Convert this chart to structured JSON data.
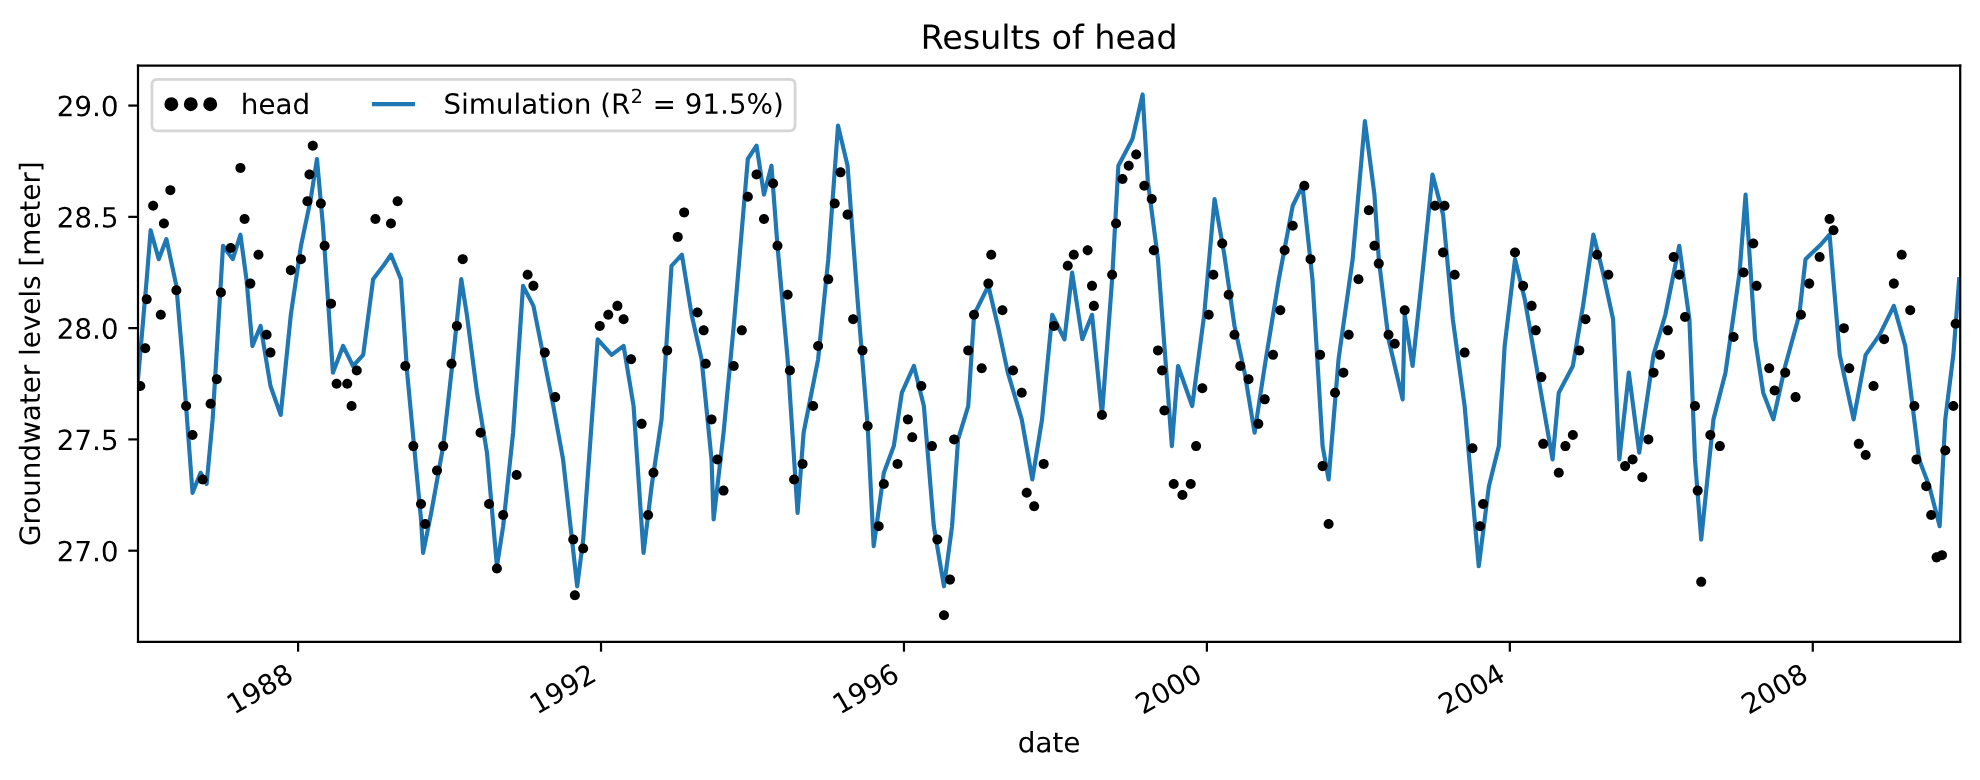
{
  "chart_data": {
    "type": "line",
    "title": "Results of head",
    "xlabel": "date",
    "ylabel": "Groundwater levels [meter]",
    "xlim": [
      "1985-11-20",
      "2009-12-12"
    ],
    "xticks": [
      "1988",
      "1992",
      "1996",
      "2000",
      "2004",
      "2008"
    ],
    "ylim": [
      26.59,
      29.18
    ],
    "yticks": [
      {
        "value": 27.0,
        "label": "27.0"
      },
      {
        "value": 27.5,
        "label": "27.5"
      },
      {
        "value": 28.0,
        "label": "28.0"
      },
      {
        "value": 28.5,
        "label": "28.5"
      },
      {
        "value": 29.0,
        "label": "29.0"
      }
    ],
    "legend": "top left",
    "series": [
      {
        "name": "head",
        "type": "scatter",
        "marker": "circle",
        "color": "#000000",
        "x": [
          "1985-12-01",
          "1985-12-25",
          "1986-01-01",
          "1986-02-01",
          "1986-03-10",
          "1986-03-25",
          "1986-04-25",
          "1986-05-24",
          "1986-07-10",
          "1986-08-10",
          "1986-09-28",
          "1986-11-05",
          "1986-12-05",
          "1986-12-25",
          "1987-02-10",
          "1987-03-29",
          "1987-04-18",
          "1987-05-16",
          "1987-06-24",
          "1987-08-02",
          "1987-08-21",
          "1987-11-27",
          "1988-01-15",
          "1988-02-15",
          "1988-02-25",
          "1988-03-12",
          "1988-04-20",
          "1988-05-08",
          "1988-06-08",
          "1988-07-05",
          "1988-08-25",
          "1988-09-15",
          "1988-10-10",
          "1989-01-08",
          "1989-03-24",
          "1989-04-25",
          "1989-06-01",
          "1989-07-10",
          "1989-08-16",
          "1989-09-05",
          "1989-11-01",
          "1989-12-01",
          "1990-01-10",
          "1990-02-05",
          "1990-03-05",
          "1990-05-30",
          "1990-07-10",
          "1990-08-17",
          "1990-09-16",
          "1990-11-20",
          "1991-01-12",
          "1991-02-09",
          "1991-04-05",
          "1991-05-25",
          "1991-08-20",
          "1991-08-28",
          "1991-10-07",
          "1991-12-26",
          "1992-02-05",
          "1992-03-20",
          "1992-04-19",
          "1992-05-25",
          "1992-07-15",
          "1992-08-15",
          "1992-09-10",
          "1992-11-15",
          "1993-01-05",
          "1993-02-05",
          "1993-04-10",
          "1993-05-10",
          "1993-05-20",
          "1993-06-17",
          "1993-07-15",
          "1993-08-14",
          "1993-10-02",
          "1993-11-10",
          "1993-12-09",
          "1994-01-20",
          "1994-02-25",
          "1994-04-10",
          "1994-05-01",
          "1994-06-19",
          "1994-06-30",
          "1994-07-20",
          "1994-08-30",
          "1994-10-20",
          "1994-11-13",
          "1995-01-01",
          "1995-02-01",
          "1995-03-01",
          "1995-04-04",
          "1995-05-01",
          "1995-06-15",
          "1995-07-10",
          "1995-09-01",
          "1995-09-26",
          "1995-12-01",
          "1996-01-20",
          "1996-02-10",
          "1996-03-25",
          "1996-05-15",
          "1996-06-10",
          "1996-07-12",
          "1996-08-10",
          "1996-08-30",
          "1996-11-06",
          "1996-12-04",
          "1997-01-10",
          "1997-02-11",
          "1997-02-25",
          "1997-04-20",
          "1997-06-10",
          "1997-07-22",
          "1997-08-15",
          "1997-09-20",
          "1997-11-05",
          "1997-12-25",
          "1998-03-01",
          "1998-03-30",
          "1998-06-05",
          "1998-06-26",
          "1998-07-05",
          "1998-08-13",
          "1998-10-01",
          "1998-10-20",
          "1998-11-20",
          "1998-12-20",
          "1999-01-25",
          "1999-03-05",
          "1999-04-10",
          "1999-04-20",
          "1999-05-10",
          "1999-05-30",
          "1999-06-10",
          "1999-07-25",
          "1999-09-05",
          "1999-10-15",
          "1999-11-10",
          "1999-12-10",
          "2000-01-10",
          "2000-02-01",
          "2000-03-15",
          "2000-04-15",
          "2000-05-13",
          "2000-06-10",
          "2000-07-20",
          "2000-09-05",
          "2000-10-06",
          "2000-11-15",
          "2000-12-20",
          "2001-01-10",
          "2001-02-18",
          "2001-04-15",
          "2001-05-15",
          "2001-06-30",
          "2001-07-12",
          "2001-08-10",
          "2001-09-10",
          "2001-10-20",
          "2001-11-15",
          "2002-01-01",
          "2002-02-20",
          "2002-03-19",
          "2002-04-09",
          "2002-05-26",
          "2002-06-25",
          "2002-08-12",
          "2003-01-05",
          "2003-02-20",
          "2003-02-13",
          "2003-04-10",
          "2003-05-28",
          "2003-07-05",
          "2003-08-25",
          "2003-08-10",
          "2004-01-26",
          "2004-03-05",
          "2004-04-15",
          "2004-05-05",
          "2004-06-01",
          "2004-06-10",
          "2004-08-24",
          "2004-09-25",
          "2004-10-31",
          "2004-12-01",
          "2004-12-31",
          "2005-02-25",
          "2005-04-20",
          "2005-07-10",
          "2005-08-15",
          "2005-10-01",
          "2005-10-30",
          "2005-11-24",
          "2005-12-25",
          "2006-02-01",
          "2006-03-01",
          "2006-03-28",
          "2006-04-25",
          "2006-06-12",
          "2006-06-25",
          "2006-07-12",
          "2006-08-25",
          "2006-10-10",
          "2006-12-15",
          "2007-02-01",
          "2007-03-20",
          "2007-04-05",
          "2007-06-05",
          "2007-07-01",
          "2007-08-21",
          "2007-10-10",
          "2007-11-05",
          "2007-12-15",
          "2008-02-03",
          "2008-03-22",
          "2008-04-10",
          "2008-05-30",
          "2008-06-25",
          "2008-08-10",
          "2008-09-12",
          "2008-10-20",
          "2008-12-10",
          "2009-01-26",
          "2009-03-05",
          "2009-04-15",
          "2009-05-05",
          "2009-05-15",
          "2009-07-01",
          "2009-07-25",
          "2009-08-20",
          "2009-09-15",
          "2009-10-01",
          "2009-11-09",
          "2009-11-20"
        ],
        "values": [
          27.74,
          27.91,
          28.13,
          28.55,
          28.06,
          28.47,
          28.62,
          28.17,
          27.65,
          27.52,
          27.32,
          27.66,
          27.77,
          28.16,
          28.36,
          28.72,
          28.49,
          28.2,
          28.33,
          27.97,
          27.89,
          28.26,
          28.31,
          28.57,
          28.69,
          28.82,
          28.56,
          28.37,
          28.11,
          27.75,
          27.75,
          27.65,
          27.81,
          28.49,
          28.47,
          28.57,
          27.83,
          27.47,
          27.21,
          27.12,
          27.36,
          27.47,
          27.84,
          28.01,
          28.31,
          27.53,
          27.21,
          26.92,
          27.16,
          27.34,
          28.24,
          28.19,
          27.89,
          27.69,
          27.05,
          26.8,
          27.01,
          28.01,
          28.06,
          28.1,
          28.04,
          27.86,
          27.57,
          27.16,
          27.35,
          27.9,
          28.41,
          28.52,
          28.07,
          27.99,
          27.84,
          27.59,
          27.41,
          27.27,
          27.83,
          27.99,
          28.59,
          28.69,
          28.49,
          28.65,
          28.37,
          28.15,
          27.81,
          27.32,
          27.39,
          27.65,
          27.92,
          28.22,
          28.56,
          28.7,
          28.51,
          28.04,
          27.9,
          27.56,
          27.11,
          27.3,
          27.39,
          27.59,
          27.51,
          27.74,
          27.47,
          27.05,
          26.71,
          26.87,
          27.5,
          27.9,
          28.06,
          27.82,
          28.2,
          28.33,
          28.08,
          27.81,
          27.71,
          27.26,
          27.2,
          27.39,
          28.01,
          28.28,
          28.33,
          28.35,
          28.19,
          28.1,
          27.61,
          28.24,
          28.47,
          28.67,
          28.73,
          28.78,
          28.64,
          28.58,
          28.35,
          27.9,
          27.81,
          27.63,
          27.3,
          27.25,
          27.3,
          27.47,
          27.73,
          28.06,
          28.24,
          28.38,
          28.15,
          27.97,
          27.83,
          27.77,
          27.57,
          27.68,
          27.88,
          28.08,
          28.35,
          28.46,
          28.64,
          28.31,
          27.88,
          27.38,
          27.12,
          27.71,
          27.8,
          27.97,
          28.22,
          28.53,
          28.37,
          28.29,
          27.97,
          27.93,
          28.08,
          28.55,
          28.55,
          28.34,
          28.24,
          27.89,
          27.46,
          27.21,
          27.11,
          28.34,
          28.19,
          28.1,
          27.99,
          27.78,
          27.48,
          27.35,
          27.47,
          27.52,
          27.9,
          28.04,
          28.33,
          28.24,
          27.38,
          27.41,
          27.33,
          27.5,
          27.8,
          27.88,
          27.99,
          28.32,
          28.24,
          28.05,
          27.65,
          27.27,
          26.86,
          27.52,
          27.47,
          27.96,
          28.25,
          28.38,
          28.19,
          27.82,
          27.72,
          27.8,
          27.69,
          28.06,
          28.2,
          28.32,
          28.49,
          28.44,
          28.0,
          27.82,
          27.48,
          27.43,
          27.74,
          27.95,
          28.2,
          28.33,
          28.08,
          27.65,
          27.41,
          27.29,
          27.16,
          26.97,
          26.98,
          27.45,
          27.65,
          28.02
        ]
      },
      {
        "name": "Simulation (R$^{2}$ = 91.5%)",
        "marker": "none",
        "color": "#1f77b4",
        "x": [
          "1985-11-20",
          "1986-01-01",
          "1986-01-20",
          "1986-02-28",
          "1986-04-06",
          "1986-05-24",
          "1986-06-23",
          "1986-08-10",
          "1986-09-18",
          "1986-10-17",
          "1986-11-15",
          "1987-01-04",
          "1987-02-20",
          "1987-03-29",
          "1987-04-27",
          "1987-05-26",
          "1987-07-04",
          "1987-08-21",
          "1987-10-09",
          "1987-11-27",
          "1988-01-15",
          "1988-03-02",
          "1988-04-01",
          "1988-04-30",
          "1988-06-17",
          "1988-08-05",
          "1988-09-22",
          "1988-11-10",
          "1988-12-28",
          "1989-02-15",
          "1989-03-24",
          "1989-05-11",
          "1989-06-10",
          "1989-08-16",
          "1989-08-26",
          "1989-10-04",
          "1989-12-01",
          "1990-01-19",
          "1990-02-26",
          "1990-03-25",
          "1990-05-13",
          "1990-06-30",
          "1990-08-17",
          "1990-09-16",
          "1990-11-03",
          "1990-12-21",
          "1991-02-09",
          "1991-03-28",
          "1991-05-16",
          "1991-07-02",
          "1991-09-08",
          "1991-10-07",
          "1991-12-16",
          "1992-02-21",
          "1992-04-19",
          "1992-06-06",
          "1992-07-24",
          "1992-09-01",
          "1992-10-19",
          "1992-12-06",
          "1993-01-25",
          "1993-03-13",
          "1993-04-30",
          "1993-06-17",
          "1993-06-27",
          "1993-08-14",
          "1993-10-02",
          "1993-12-09",
          "1994-01-20",
          "1994-02-25",
          "1994-04-02",
          "1994-05-01",
          "1994-06-19",
          "1994-08-06",
          "1994-09-04",
          "1994-11-13",
          "1995-01-01",
          "1995-02-17",
          "1995-04-04",
          "1995-05-22",
          "1995-07-10",
          "1995-08-08",
          "1995-09-26",
          "1995-11-13",
          "1995-12-22",
          "1996-02-18",
          "1996-04-06",
          "1996-05-24",
          "1996-07-12",
          "1996-08-20",
          "1996-09-18",
          "1996-11-06",
          "1996-12-04",
          "1997-02-11",
          "1997-03-29",
          "1997-05-16",
          "1997-07-22",
          "1997-09-11",
          "1997-10-28",
          "1997-12-16",
          "1998-02-13",
          "1998-03-22",
          "1998-05-10",
          "1998-06-26",
          "1998-08-13",
          "1998-10-01",
          "1998-10-31",
          "1999-01-07",
          "1999-02-25",
          "1999-03-22",
          "1999-05-10",
          "1999-07-16",
          "1999-08-15",
          "1999-10-22",
          "1999-12-19",
          "2000-02-07",
          "2000-03-25",
          "2000-05-13",
          "2000-07-01",
          "2000-08-18",
          "2000-10-06",
          "2000-12-13",
          "2001-02-18",
          "2001-04-06",
          "2001-05-24",
          "2001-07-12",
          "2001-08-10",
          "2001-09-27",
          "2001-12-04",
          "2002-02-01",
          "2002-03-19",
          "2002-04-09",
          "2002-05-26",
          "2002-08-02",
          "2002-08-12",
          "2002-09-19",
          "2002-11-06",
          "2002-12-24",
          "2003-02-13",
          "2003-04-01",
          "2003-05-28",
          "2003-08-04",
          "2003-09-22",
          "2003-11-09",
          "2003-12-07",
          "2004-01-26",
          "2004-03-13",
          "2004-05-19",
          "2004-07-25",
          "2004-08-24",
          "2004-10-31",
          "2004-12-19",
          "2005-02-07",
          "2005-03-25",
          "2005-05-13",
          "2005-06-12",
          "2005-07-28",
          "2005-09-16",
          "2005-11-24",
          "2006-01-20",
          "2006-03-28",
          "2006-05-16",
          "2006-06-12",
          "2006-07-12",
          "2006-09-09",
          "2006-11-06",
          "2007-01-13",
          "2007-02-11",
          "2007-03-29",
          "2007-05-07",
          "2007-06-25",
          "2007-08-21",
          "2007-10-28",
          "2007-11-27",
          "2008-02-03",
          "2008-03-22",
          "2008-05-10",
          "2008-07-16",
          "2008-09-12",
          "2008-11-18",
          "2009-01-26",
          "2009-03-22",
          "2009-05-28",
          "2009-07-16",
          "2009-09-04",
          "2009-10-01",
          "2009-11-09",
          "2009-12-07"
        ],
        "values": [
          27.77,
          28.22,
          28.44,
          28.31,
          28.4,
          28.19,
          27.86,
          27.26,
          27.35,
          27.3,
          27.59,
          28.37,
          28.31,
          28.42,
          28.22,
          27.92,
          28.01,
          27.74,
          27.61,
          28.06,
          28.37,
          28.58,
          28.76,
          28.46,
          27.8,
          27.92,
          27.83,
          27.88,
          28.22,
          28.28,
          28.33,
          28.22,
          27.8,
          27.14,
          26.99,
          27.17,
          27.47,
          27.88,
          28.22,
          28.06,
          27.71,
          27.44,
          26.93,
          27.11,
          27.53,
          28.19,
          28.1,
          27.88,
          27.65,
          27.41,
          26.84,
          27.05,
          27.95,
          27.88,
          27.92,
          27.65,
          26.99,
          27.29,
          27.59,
          28.28,
          28.33,
          28.06,
          27.86,
          27.41,
          27.14,
          27.53,
          28.01,
          28.76,
          28.82,
          28.6,
          28.73,
          28.37,
          27.86,
          27.17,
          27.53,
          27.86,
          28.31,
          28.91,
          28.73,
          28.13,
          27.56,
          27.02,
          27.35,
          27.47,
          27.71,
          27.83,
          27.65,
          27.11,
          26.84,
          27.11,
          27.5,
          27.65,
          28.06,
          28.19,
          28.01,
          27.8,
          27.59,
          27.32,
          27.59,
          28.06,
          27.95,
          28.25,
          27.95,
          28.06,
          27.61,
          28.22,
          28.73,
          28.85,
          29.05,
          28.66,
          28.31,
          27.47,
          27.83,
          27.65,
          28.06,
          28.58,
          28.33,
          28.01,
          27.8,
          27.53,
          27.83,
          28.22,
          28.55,
          28.64,
          28.22,
          27.47,
          27.32,
          27.86,
          28.31,
          28.93,
          28.6,
          28.31,
          27.95,
          27.68,
          28.06,
          27.83,
          28.25,
          28.69,
          28.51,
          28.04,
          27.65,
          26.93,
          27.29,
          27.47,
          27.92,
          28.31,
          28.13,
          27.77,
          27.41,
          27.71,
          27.83,
          28.1,
          28.42,
          28.25,
          28.04,
          27.41,
          27.8,
          27.44,
          27.88,
          28.06,
          28.37,
          28.04,
          27.41,
          27.05,
          27.59,
          27.8,
          28.25,
          28.6,
          27.95,
          27.71,
          27.59,
          27.83,
          28.06,
          28.31,
          28.37,
          28.42,
          27.88,
          27.59,
          27.88,
          27.97,
          28.1,
          27.92,
          27.41,
          27.29,
          27.11,
          27.59,
          27.88,
          28.22
        ]
      }
    ]
  }
}
